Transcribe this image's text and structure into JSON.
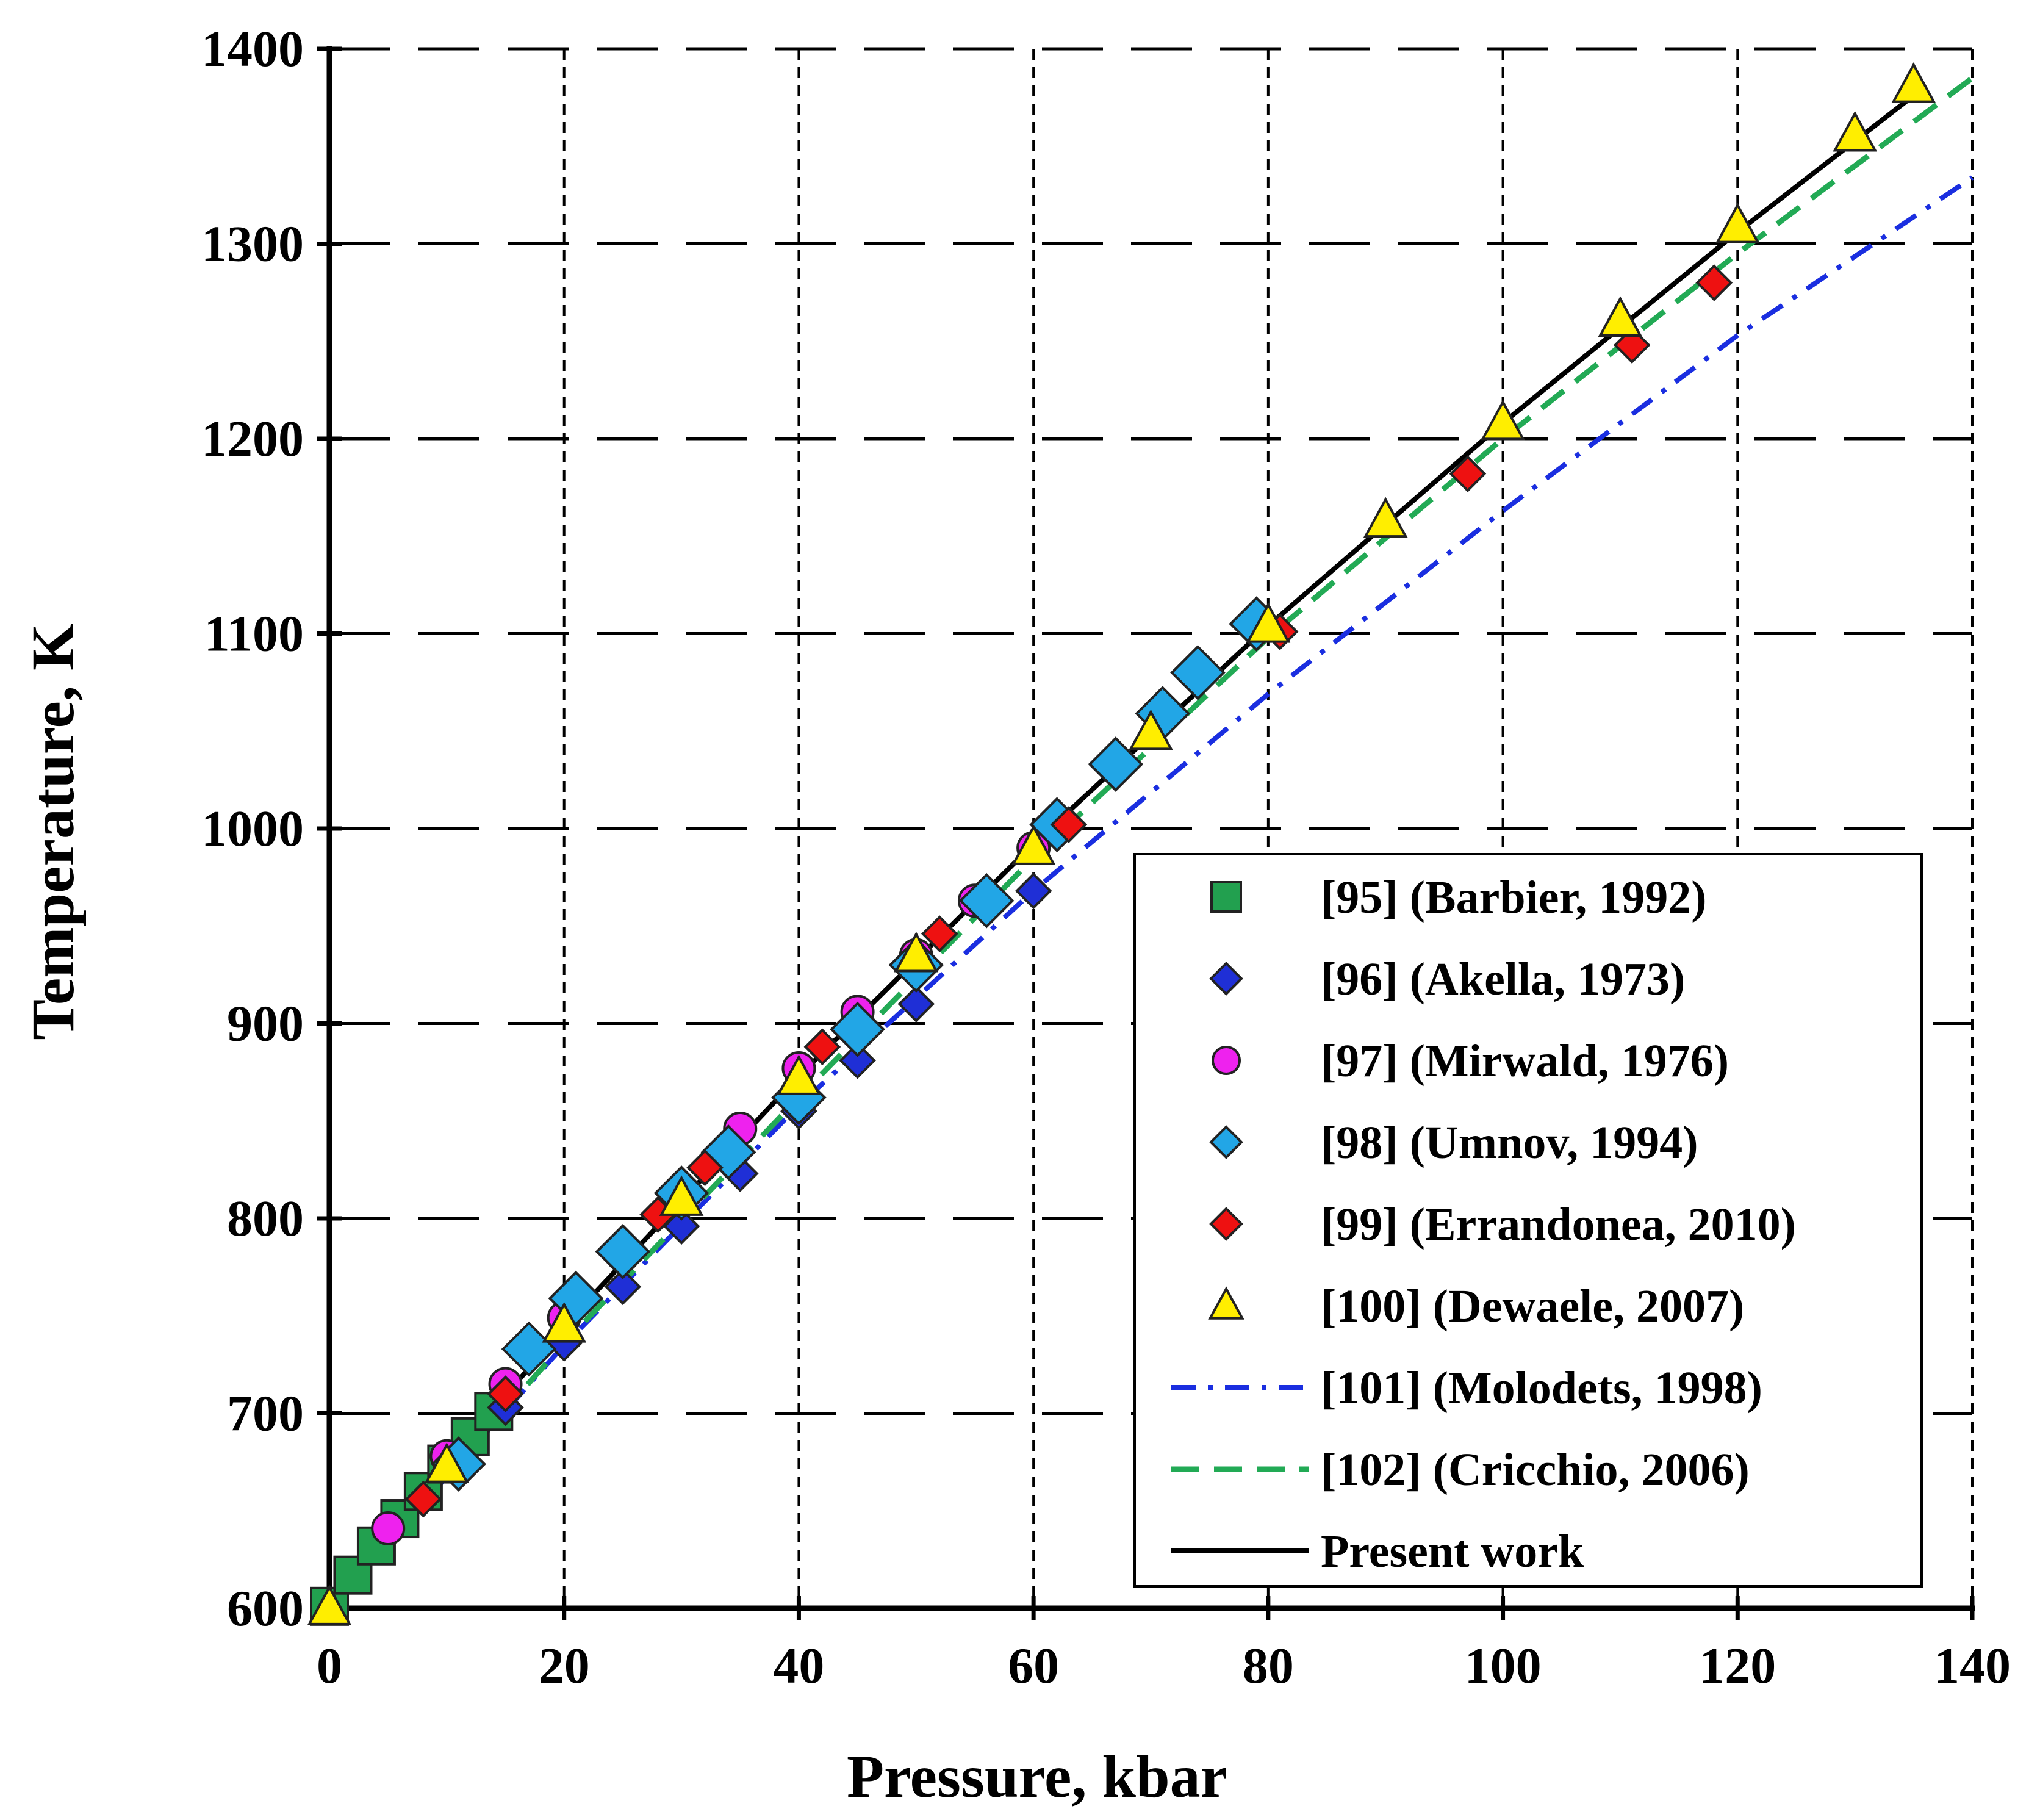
{
  "chart_data": {
    "type": "scatter",
    "xlabel": "Pressure, kbar",
    "ylabel": "Temperature, K",
    "xlim": [
      0,
      140
    ],
    "ylim": [
      600,
      1400
    ],
    "xticks": [
      0,
      20,
      40,
      60,
      80,
      100,
      120,
      140
    ],
    "yticks": [
      600,
      700,
      800,
      900,
      1000,
      1100,
      1200,
      1300,
      1400
    ],
    "xtick_labels": [
      "0",
      "20",
      "40",
      "60",
      "80",
      "100",
      "120",
      "140"
    ],
    "ytick_labels": [
      "600",
      "700",
      "800",
      "900",
      "1000",
      "1100",
      "1200",
      "1300",
      "1400"
    ],
    "grid": true,
    "legend_position": "bottom-right",
    "series": [
      {
        "name": "[95] (Barbier, 1992)",
        "marker": "square",
        "color": "#22a04f",
        "points": [
          [
            0,
            601
          ],
          [
            2,
            617
          ],
          [
            4,
            632
          ],
          [
            6,
            646
          ],
          [
            8,
            660
          ],
          [
            10,
            674
          ],
          [
            12,
            688
          ],
          [
            14,
            701
          ]
        ]
      },
      {
        "name": "[96] (Akella, 1973)",
        "marker": "diamond",
        "color": "#1f2fd6",
        "points": [
          [
            15,
            703
          ],
          [
            20,
            736
          ],
          [
            25,
            765
          ],
          [
            30,
            796
          ],
          [
            35,
            823
          ],
          [
            40,
            855
          ],
          [
            45,
            881
          ],
          [
            50,
            910
          ],
          [
            60,
            968
          ]
        ]
      },
      {
        "name": "[97] (Mirwald, 1976)",
        "marker": "circle",
        "color": "#ee22ee",
        "points": [
          [
            5,
            641
          ],
          [
            10,
            678
          ],
          [
            15,
            715
          ],
          [
            20,
            749
          ],
          [
            25,
            781
          ],
          [
            30,
            813
          ],
          [
            35,
            846
          ],
          [
            40,
            877
          ],
          [
            45,
            906
          ],
          [
            50,
            935
          ],
          [
            55,
            963
          ],
          [
            60,
            990
          ]
        ]
      },
      {
        "name": "[98] (Umnov, 1994)",
        "marker": "diamond",
        "color": "#22a6e6",
        "points": [
          [
            11,
            674
          ],
          [
            17,
            733
          ],
          [
            21,
            759
          ],
          [
            25,
            783
          ],
          [
            30,
            813
          ],
          [
            34,
            834
          ],
          [
            40,
            862
          ],
          [
            45,
            897
          ],
          [
            50,
            930
          ],
          [
            56,
            963
          ],
          [
            62,
            1002
          ],
          [
            67,
            1033
          ],
          [
            71,
            1059
          ],
          [
            74,
            1080
          ],
          [
            79,
            1105
          ]
        ]
      },
      {
        "name": "[99] (Errandonea, 2010)",
        "marker": "diamond",
        "color": "#ee1111",
        "points": [
          [
            8,
            656
          ],
          [
            15,
            710
          ],
          [
            28,
            802
          ],
          [
            32,
            826
          ],
          [
            42,
            888
          ],
          [
            52,
            946
          ],
          [
            63,
            1002
          ],
          [
            81,
            1101
          ],
          [
            97,
            1182
          ],
          [
            111,
            1248
          ],
          [
            118,
            1280
          ]
        ]
      },
      {
        "name": "[100] (Dewaele, 2007)",
        "marker": "triangle",
        "color": "#ffee00",
        "points": [
          [
            0,
            600
          ],
          [
            10,
            673
          ],
          [
            20,
            745
          ],
          [
            30,
            810
          ],
          [
            40,
            872
          ],
          [
            50,
            935
          ],
          [
            60,
            990
          ],
          [
            70,
            1049
          ],
          [
            80,
            1104
          ],
          [
            90,
            1158
          ],
          [
            100,
            1208
          ],
          [
            110,
            1261
          ],
          [
            120,
            1309
          ],
          [
            130,
            1356
          ],
          [
            135,
            1381
          ]
        ]
      }
    ],
    "lines": [
      {
        "name": "[101] (Molodets, 1998)",
        "style": "dash-dot",
        "color": "#1a2ee0",
        "x": [
          0,
          20,
          40,
          60,
          80,
          100,
          120,
          140
        ],
        "y": [
          600,
          735,
          858,
          968,
          1069,
          1163,
          1253,
          1334
        ]
      },
      {
        "name": "[102] (Cricchio, 2006)",
        "style": "dashed",
        "color": "#22aa55",
        "x": [
          0,
          20,
          40,
          60,
          80,
          100,
          120,
          140
        ],
        "y": [
          600,
          736,
          862,
          985,
          1098,
          1200,
          1295,
          1385
        ]
      },
      {
        "name": "Present work",
        "style": "solid",
        "color": "#000000",
        "x": [
          0,
          20,
          40,
          60,
          80,
          100,
          120,
          135
        ],
        "y": [
          600,
          745,
          873,
          992,
          1104,
          1208,
          1306,
          1376
        ]
      }
    ]
  }
}
